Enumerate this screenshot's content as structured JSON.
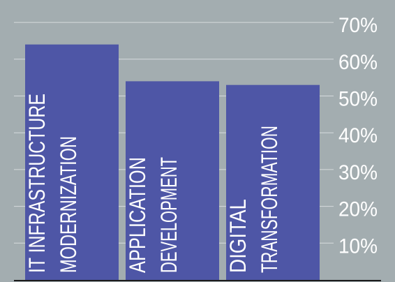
{
  "chart_data": {
    "type": "bar",
    "categories": [
      [
        "IT INFRASTRUCTURE",
        "MODERNIZATION"
      ],
      [
        "APPLICATION",
        "DEVELOPMENT"
      ],
      [
        "DIGITAL",
        "TRANSFORMATION"
      ]
    ],
    "values": [
      64,
      54,
      53
    ],
    "ylim": [
      0,
      70
    ],
    "yticks": [
      {
        "value": 10,
        "label": "10%"
      },
      {
        "value": 20,
        "label": "20%"
      },
      {
        "value": 30,
        "label": "30%"
      },
      {
        "value": 40,
        "label": "40%"
      },
      {
        "value": 50,
        "label": "50%"
      },
      {
        "value": 60,
        "label": "60%"
      },
      {
        "value": 70,
        "label": "70%"
      }
    ],
    "grid": true,
    "axis_side": "right",
    "colors": {
      "bar": "#4e56a6",
      "grid": "#d6dbdd",
      "text": "#ffffff",
      "baseline": "#1a1a1a",
      "background": "#a3adb0"
    }
  }
}
